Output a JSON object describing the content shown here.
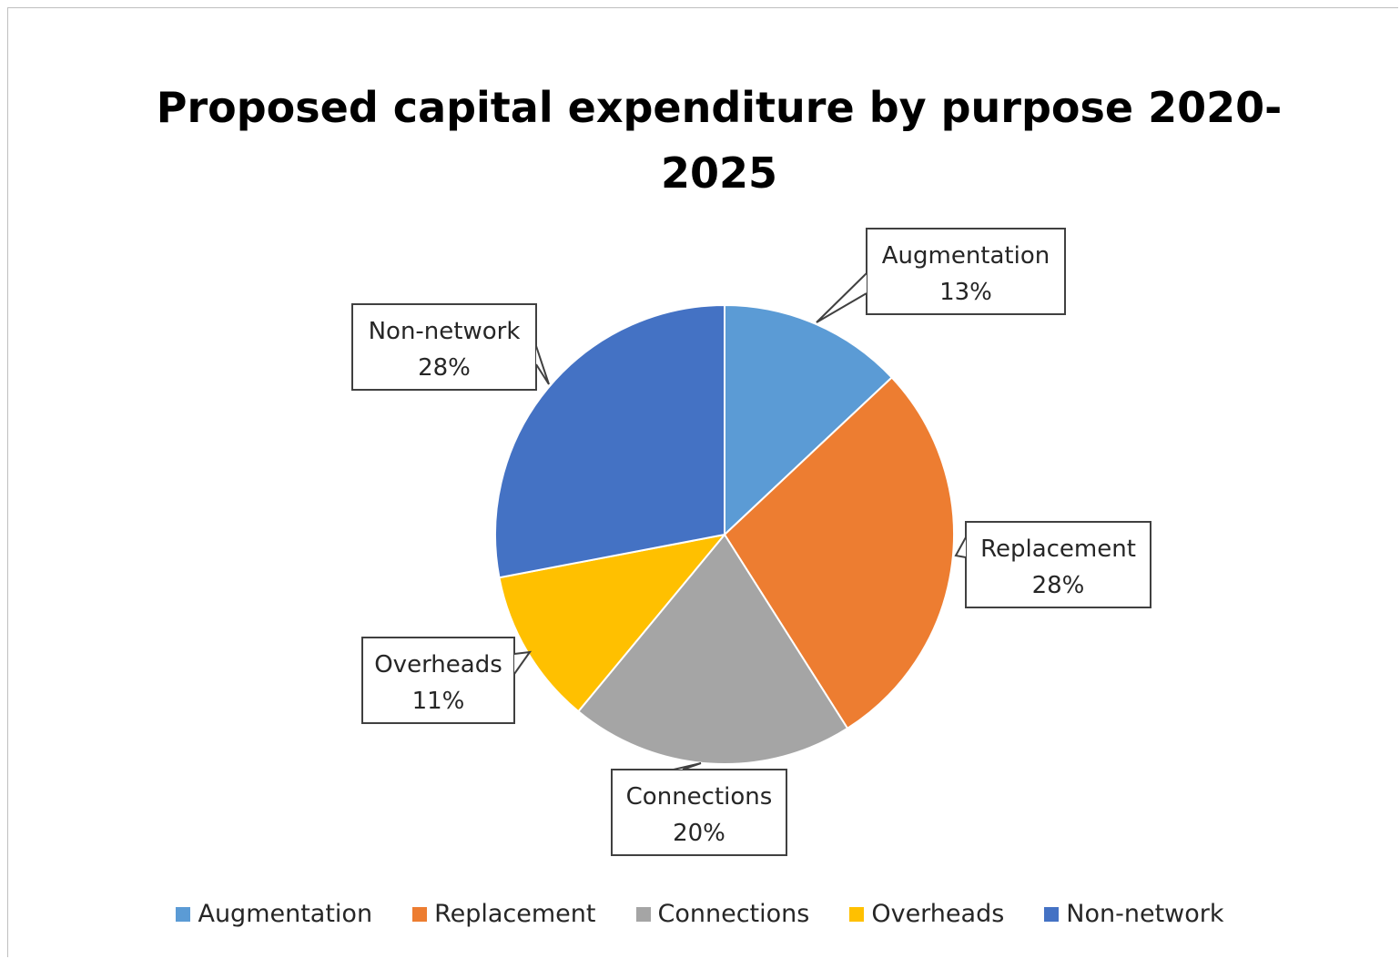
{
  "chart_data": {
    "type": "pie",
    "title": "Proposed capital expenditure by purpose 2020-2025",
    "title_lines": [
      "Proposed capital expenditure by purpose 2020-",
      "2025"
    ],
    "categories": [
      "Augmentation",
      "Replacement",
      "Connections",
      "Overheads",
      "Non-network"
    ],
    "values": [
      13,
      28,
      20,
      11,
      28
    ],
    "labels": [
      "13%",
      "28%",
      "20%",
      "11%",
      "28%"
    ],
    "colors": [
      "#5B9BD5",
      "#ED7D31",
      "#A5A5A5",
      "#FFC000",
      "#4472C4"
    ],
    "legend_position": "bottom",
    "data_labels": "callout"
  }
}
